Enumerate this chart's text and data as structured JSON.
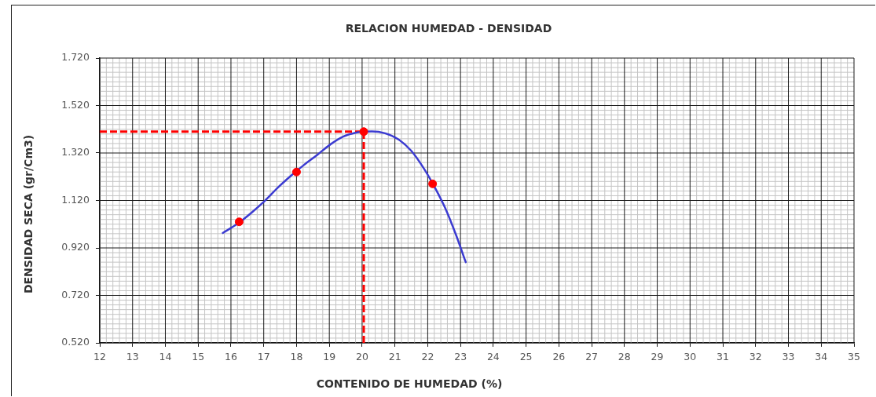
{
  "chart_data": {
    "type": "scatter",
    "title": "RELACION HUMEDAD - DENSIDAD",
    "xlabel": "CONTENIDO DE HUMEDAD (%)",
    "ylabel": "DENSIDAD SECA (gr/Cm3)",
    "xlim": [
      12,
      35
    ],
    "xticks": [
      12,
      13,
      14,
      15,
      16,
      17,
      18,
      19,
      20,
      21,
      22,
      23,
      24,
      25,
      26,
      27,
      28,
      29,
      30,
      31,
      32,
      33,
      34,
      35
    ],
    "ylim": [
      0.52,
      1.72
    ],
    "yticks": [
      {
        "value": 0.52,
        "label": "0.520"
      },
      {
        "value": 0.72,
        "label": "0.720"
      },
      {
        "value": 0.92,
        "label": "0.920"
      },
      {
        "value": 1.12,
        "label": "1.120"
      },
      {
        "value": 1.32,
        "label": "1.320"
      },
      {
        "value": 1.52,
        "label": "1.520"
      },
      {
        "value": 1.72,
        "label": "1.720"
      }
    ],
    "grid": true,
    "legend": false,
    "series": [
      {
        "type": "line",
        "color": "#3b3bd1",
        "marker": "none",
        "x": [
          15.75,
          16.23,
          16.63,
          17.03,
          17.43,
          17.83,
          18.23,
          18.63,
          19.03,
          19.42,
          19.82,
          20.06,
          20.3,
          20.7,
          21.1,
          21.5,
          21.9,
          22.22,
          22.54,
          22.86,
          23.16
        ],
        "values": [
          0.983,
          1.025,
          1.069,
          1.118,
          1.174,
          1.224,
          1.27,
          1.312,
          1.356,
          1.389,
          1.406,
          1.41,
          1.411,
          1.403,
          1.378,
          1.329,
          1.251,
          1.174,
          1.086,
          0.976,
          0.86
        ]
      },
      {
        "type": "scatter",
        "color": "#ff0000",
        "marker": "circle",
        "x": [
          16.25,
          18.0,
          20.05,
          22.15
        ],
        "values": [
          1.03,
          1.24,
          1.41,
          1.19
        ]
      }
    ],
    "ref_lines": [
      {
        "axis": "y",
        "value": 1.41,
        "color": "#ff0000",
        "line_style": "dashed"
      },
      {
        "axis": "x",
        "value": 20.05,
        "color": "#ff0000",
        "line_style": "dashed"
      }
    ]
  }
}
